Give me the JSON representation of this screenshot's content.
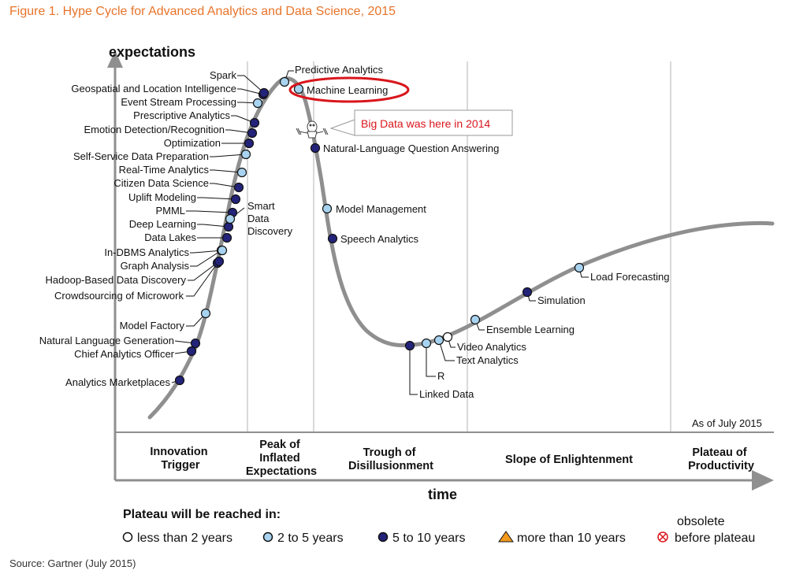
{
  "figure_title": "Figure 1. Hype Cycle for Advanced Analytics and Data Science, 2015",
  "source": "Source: Gartner (July 2015)",
  "colors": {
    "title": "#e8742a",
    "curve": "#8f8f8f",
    "gridline": "#d9d9d9",
    "dark_dot": "#23237a",
    "light_dot": "#a8d3f0",
    "white_dot": "#ffffff",
    "highlight": "#d9161c",
    "orange": "#f39a1e"
  },
  "chart_data": {
    "type": "hype-cycle",
    "y_axis_label": "expectations",
    "x_axis_label": "time",
    "as_of": "As of July 2015",
    "phases": [
      {
        "lines": [
          "Innovation",
          "Trigger"
        ]
      },
      {
        "lines": [
          "Peak of",
          "Inflated",
          "Expectations"
        ]
      },
      {
        "lines": [
          "Trough of",
          "Disillusionment"
        ]
      },
      {
        "lines": [
          "Slope of Enlightenment"
        ]
      },
      {
        "lines": [
          "Plateau of",
          "Productivity"
        ]
      }
    ],
    "technologies": [
      {
        "name": "Analytics Marketplaces",
        "category": "5 to 10 years"
      },
      {
        "name": "Chief Analytics Officer",
        "category": "5 to 10 years"
      },
      {
        "name": "Natural Language Generation",
        "category": "5 to 10 years"
      },
      {
        "name": "Model Factory",
        "category": "2 to 5 years"
      },
      {
        "name": "Crowdsourcing of Microwork",
        "category": "5 to 10 years"
      },
      {
        "name": "Hadoop-Based Data Discovery",
        "category": "5 to 10 years"
      },
      {
        "name": "Graph Analysis",
        "category": "5 to 10 years"
      },
      {
        "name": "In-DBMS Analytics",
        "category": "2 to 5 years"
      },
      {
        "name": "Data Lakes",
        "category": "5 to 10 years"
      },
      {
        "name": "Deep Learning",
        "category": "5 to 10 years"
      },
      {
        "name": "PMML",
        "category": "5 to 10 years"
      },
      {
        "name": "Uplift Modeling",
        "category": "5 to 10 years"
      },
      {
        "name": "Citizen Data Science",
        "category": "5 to 10 years"
      },
      {
        "name": "Real-Time Analytics",
        "category": "2 to 5 years"
      },
      {
        "name": "Self-Service Data Preparation",
        "category": "2 to 5 years"
      },
      {
        "name": "Optimization",
        "category": "5 to 10 years"
      },
      {
        "name": "Emotion Detection/Recognition",
        "category": "5 to 10 years"
      },
      {
        "name": "Prescriptive Analytics",
        "category": "5 to 10 years"
      },
      {
        "name": "Event Stream Processing",
        "category": "2 to 5 years"
      },
      {
        "name": "Geospatial and Location Intelligence",
        "category": "5 to 10 years"
      },
      {
        "name": "Spark",
        "category": "5 to 10 years"
      },
      {
        "name": "Smart Data Discovery",
        "category": "2 to 5 years"
      },
      {
        "name": "Predictive Analytics",
        "category": "2 to 5 years"
      },
      {
        "name": "Machine Learning",
        "category": "2 to 5 years"
      },
      {
        "name": "Natural-Language Question Answering",
        "category": "5 to 10 years"
      },
      {
        "name": "Model Management",
        "category": "2 to 5 years"
      },
      {
        "name": "Speech Analytics",
        "category": "5 to 10 years"
      },
      {
        "name": "Linked Data",
        "category": "5 to 10 years"
      },
      {
        "name": "R",
        "category": "2 to 5 years"
      },
      {
        "name": "Text Analytics",
        "category": "2 to 5 years"
      },
      {
        "name": "Video Analytics",
        "category": "less than 2 years"
      },
      {
        "name": "Ensemble Learning",
        "category": "2 to 5 years"
      },
      {
        "name": "Simulation",
        "category": "5 to 10 years"
      },
      {
        "name": "Load Forecasting",
        "category": "2 to 5 years"
      }
    ],
    "highlighted": "Machine Learning",
    "callout": "Big Data was here in 2014",
    "legend": {
      "title": "Plateau will be reached in:",
      "entries": [
        {
          "label": "less than 2 years",
          "marker": "white-circle"
        },
        {
          "label": "2 to 5 years",
          "marker": "light-blue-circle"
        },
        {
          "label": "5 to 10 years",
          "marker": "dark-blue-circle"
        },
        {
          "label": "more than 10 years",
          "marker": "orange-triangle"
        },
        {
          "label_lines": [
            "obsolete",
            "before plateau"
          ],
          "marker": "crossed-circle"
        }
      ]
    }
  }
}
